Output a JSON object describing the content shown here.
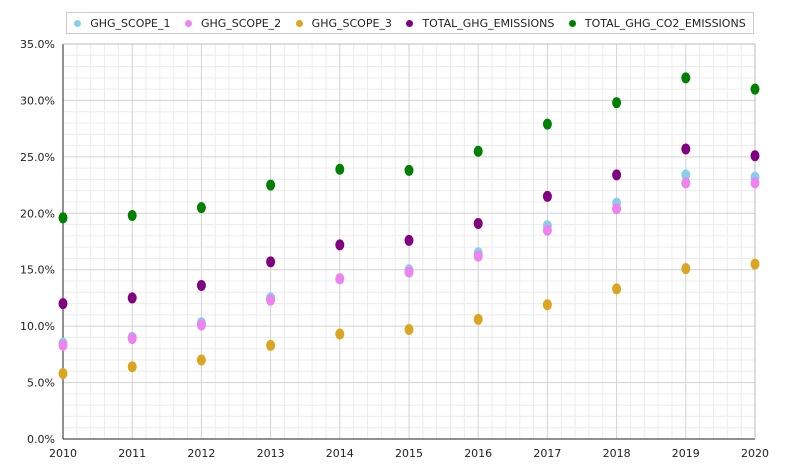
{
  "chart_data": {
    "type": "scatter",
    "title": "",
    "xlabel": "",
    "ylabel": "",
    "x": [
      2010,
      2011,
      2012,
      2013,
      2014,
      2015,
      2016,
      2017,
      2018,
      2019,
      2020
    ],
    "xlim": [
      2010,
      2020
    ],
    "ylim": [
      0,
      0.35
    ],
    "y_tick_labels": [
      "0.0%",
      "5.0%",
      "10.0%",
      "15.0%",
      "20.0%",
      "25.0%",
      "30.0%",
      "35.0%"
    ],
    "x_tick_labels": [
      "2010",
      "2011",
      "2012",
      "2013",
      "2014",
      "2015",
      "2016",
      "2017",
      "2018",
      "2019",
      "2020"
    ],
    "grid": true,
    "legend_position": "top",
    "series": [
      {
        "name": "GHG_SCOPE_1",
        "color": "#87ceeb",
        "values": [
          0.085,
          0.09,
          0.103,
          0.125,
          0.142,
          0.15,
          0.165,
          0.189,
          0.209,
          0.234,
          0.232
        ]
      },
      {
        "name": "GHG_SCOPE_2",
        "color": "#ee82ee",
        "values": [
          0.083,
          0.089,
          0.101,
          0.123,
          0.142,
          0.148,
          0.162,
          0.185,
          0.204,
          0.227,
          0.227
        ]
      },
      {
        "name": "GHG_SCOPE_3",
        "color": "#daa520",
        "values": [
          0.058,
          0.064,
          0.07,
          0.083,
          0.093,
          0.097,
          0.106,
          0.119,
          0.133,
          0.151,
          0.155
        ]
      },
      {
        "name": "TOTAL_GHG_EMISSIONS",
        "color": "#800080",
        "values": [
          0.12,
          0.125,
          0.136,
          0.157,
          0.172,
          0.176,
          0.191,
          0.215,
          0.234,
          0.257,
          0.251
        ]
      },
      {
        "name": "TOTAL_GHG_CO2_EMISSIONS",
        "color": "#008000",
        "values": [
          0.196,
          0.198,
          0.205,
          0.225,
          0.239,
          0.238,
          0.255,
          0.279,
          0.298,
          0.32,
          0.31
        ]
      }
    ]
  }
}
